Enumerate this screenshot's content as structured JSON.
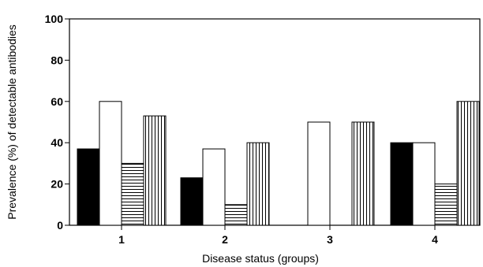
{
  "chart_data": {
    "type": "bar",
    "categories": [
      "1",
      "2",
      "3",
      "4"
    ],
    "series": [
      {
        "fill": "solid-black",
        "color": "#000000",
        "values": [
          37,
          23,
          0,
          40
        ]
      },
      {
        "fill": "white",
        "color": "#ffffff",
        "values": [
          60,
          37,
          50,
          40
        ]
      },
      {
        "fill": "horizontal-stripes",
        "color": "#000000",
        "values": [
          30,
          10,
          0,
          20
        ]
      },
      {
        "fill": "vertical-stripes",
        "color": "#000000",
        "values": [
          53,
          40,
          50,
          60
        ]
      }
    ],
    "xlabel": "Disease status (groups)",
    "ylabel": "Prevalence (%) of detectable antibodies",
    "ylim": [
      0,
      100
    ],
    "yticks": [
      "0",
      "20",
      "40",
      "60",
      "80",
      "100"
    ],
    "grid": false,
    "legend": "none"
  }
}
